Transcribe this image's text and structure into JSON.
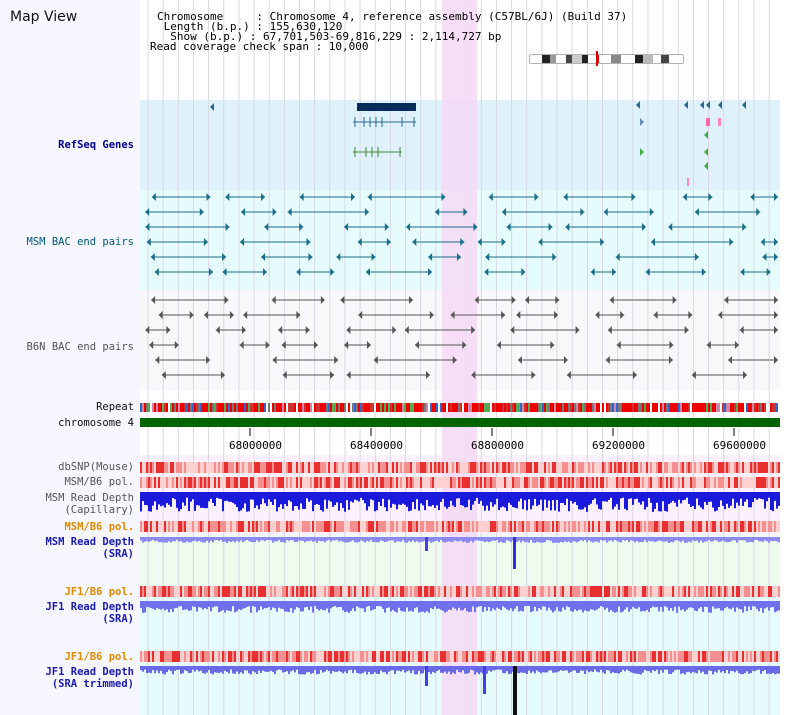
{
  "page": {
    "title": "Map View"
  },
  "info": {
    "chromosome": "Chromosome     : Chromosome 4, reference assembly (C57BL/6J) (Build 37)",
    "length": " Length (b.p.) : 155,630,120",
    "show": "  Show (b.p.) : 67,701,503-69,816,229 : 2,114,727 bp",
    "span": "Read coverage check span : 10,000"
  },
  "tracks": {
    "refseq": "RefSeq Genes",
    "msm_bac": "MSM BAC end pairs",
    "b6n_bac": "B6N BAC end pairs",
    "repeat": "Repeat",
    "chromosome": "chromosome 4",
    "dbsnp": "dbSNP(Mouse)",
    "msm_b6_pol_1": "MSM/B6 pol.",
    "msm_depth_cap": "MSM Read Depth\n(Capillary)",
    "msm_b6_pol_2": "MSM/B6 pol.",
    "msm_depth_sra": "MSM Read Depth\n(SRA)",
    "jf1_b6_pol_1": "JF1/B6 pol.",
    "jf1_depth_sra": "JF1 Read Depth\n(SRA)",
    "jf1_b6_pol_2": "JF1/B6 pol.",
    "jf1_depth_trim": "JF1 Read Depth\n(SRA trimmed)"
  },
  "axis": {
    "ticks": [
      "68000000",
      "68400000",
      "68800000",
      "69200000",
      "69600000"
    ]
  },
  "colors": {
    "refseq_bg": "#dff2fb",
    "bac_bg": "#e6fbfb",
    "highlight": "#f5d9f5",
    "chromosome_bar": "#006400",
    "depth_blue": "#2020e0",
    "depth_light": "#8080f0",
    "snp_red": "#e83030"
  }
}
